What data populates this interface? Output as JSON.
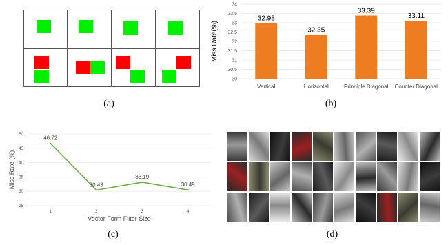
{
  "captions": {
    "a": "(a)",
    "b": "(b)",
    "c": "(c)",
    "d": "(d)"
  },
  "colors": {
    "filter_green": "#00f000",
    "filter_red": "#ff0000",
    "bar_orange": "#ee7d22",
    "line_green": "#70ad47",
    "grid_border": "#555555"
  },
  "panel_a": {
    "rows": [
      {
        "cells": [
          {
            "blocks": [
              {
                "color": "green"
              }
            ]
          },
          {
            "blocks": [
              {
                "color": "green"
              }
            ]
          },
          {
            "blocks": [
              {
                "color": "green"
              }
            ]
          },
          {
            "blocks": [
              {
                "color": "green"
              }
            ]
          }
        ]
      },
      {
        "cells": [
          {
            "blocks": [
              {
                "color": "red"
              },
              {
                "color": "green"
              }
            ]
          },
          {
            "blocks": [
              {
                "color": "red"
              },
              {
                "color": "green"
              }
            ]
          },
          {
            "blocks": [
              {
                "color": "red"
              },
              {
                "color": "green"
              }
            ]
          },
          {
            "blocks": [
              {
                "color": "red"
              },
              {
                "color": "green"
              }
            ]
          }
        ]
      }
    ]
  },
  "chart_data": [
    {
      "type": "bar",
      "categories": [
        "Vertical",
        "Horizontal",
        "Principle Diagonal",
        "Counter Diagonal"
      ],
      "values": [
        32.98,
        32.35,
        33.39,
        33.11
      ],
      "value_labels": [
        "32.98",
        "32.35",
        "33.39",
        "33.11"
      ],
      "title": "",
      "xlabel": "",
      "ylabel": "Miss Rate(%)",
      "ylim": [
        30,
        34
      ],
      "yticks": [
        "30",
        "30.5",
        "31",
        "31.5",
        "32",
        "32.5",
        "33",
        "33.5",
        "34"
      ],
      "grid": true
    },
    {
      "type": "line",
      "x": [
        "1",
        "2",
        "3",
        "4"
      ],
      "values": [
        46.72,
        30.43,
        33.19,
        30.49
      ],
      "value_labels": [
        "46.72",
        "30.43",
        "33.19",
        "30.49"
      ],
      "title": "",
      "xlabel": "Vector Form Filter Size",
      "ylabel": "Miss Rate (%)",
      "ylim": [
        25,
        50
      ],
      "yticks": [
        "25",
        "30",
        "35",
        "40",
        "45",
        "50"
      ],
      "grid": true
    }
  ],
  "panel_d": {
    "rows": 3,
    "cols": 10
  }
}
